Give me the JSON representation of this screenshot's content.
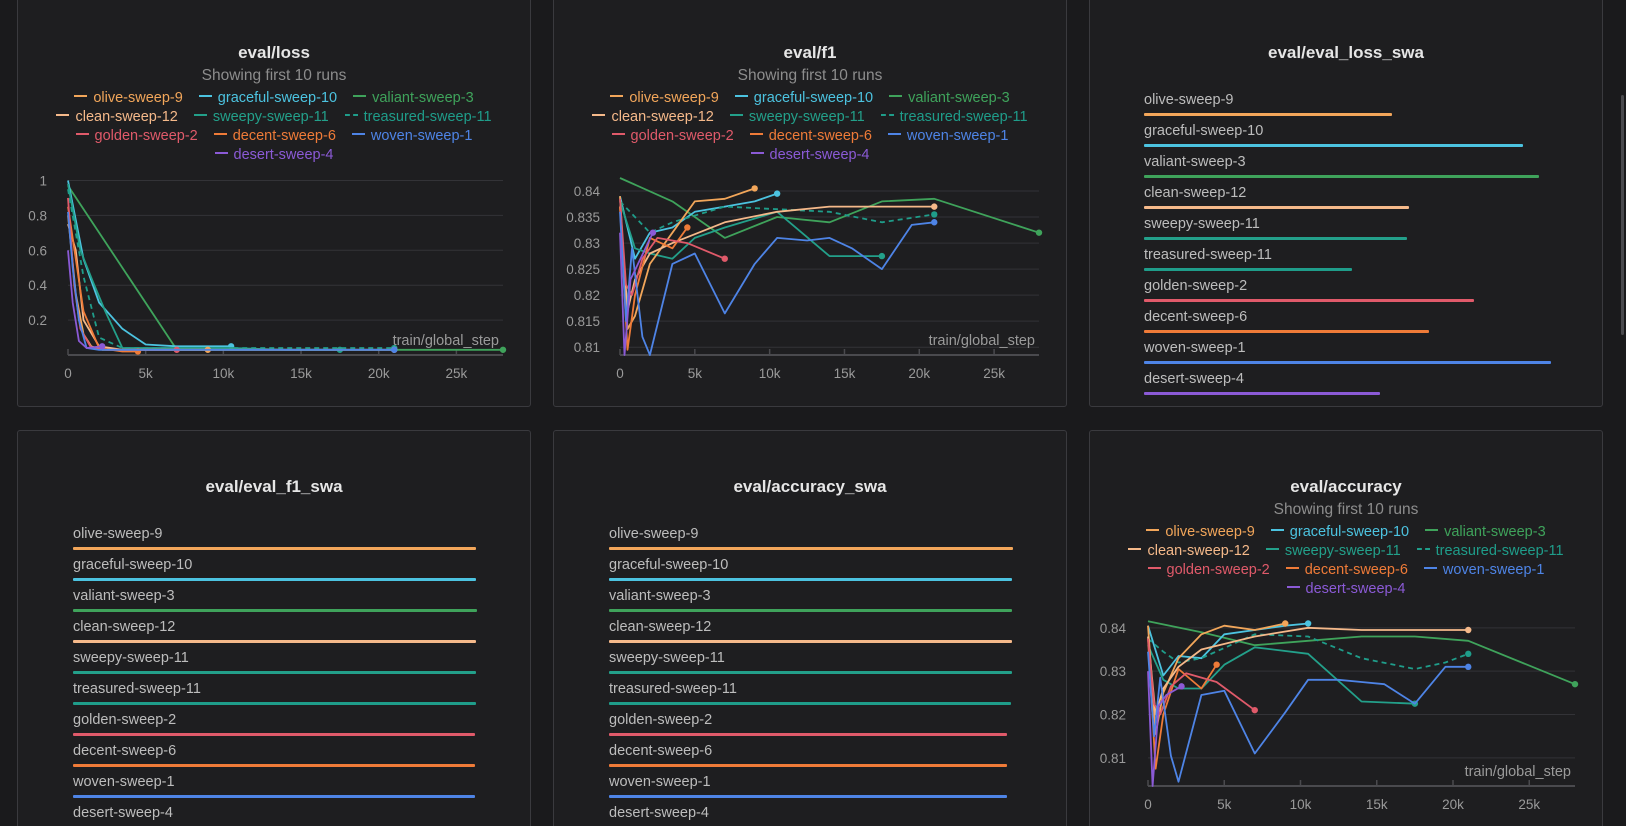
{
  "colors": {
    "olive-sweep-9": "#f2a65a",
    "graceful-sweep-10": "#4cc3e0",
    "valiant-sweep-3": "#3fa35b",
    "clean-sweep-12": "#f5b98a",
    "sweepy-sweep-11": "#23a08a",
    "treasured-sweep-11": "#1f9d8a",
    "golden-sweep-2": "#e05a6a",
    "decent-sweep-6": "#ef7b38",
    "woven-sweep-1": "#4e84e6",
    "desert-sweep-4": "#8b5ad6"
  },
  "legend_rows": [
    [
      {
        "label": "olive-sweep-9",
        "key": "olive-sweep-9"
      },
      {
        "label": "graceful-sweep-10",
        "key": "graceful-sweep-10"
      },
      {
        "label": "valiant-sweep-3",
        "key": "valiant-sweep-3"
      }
    ],
    [
      {
        "label": "clean-sweep-12",
        "key": "clean-sweep-12"
      },
      {
        "label": "sweepy-sweep-11",
        "key": "sweepy-sweep-11"
      },
      {
        "label": "treasured-sweep-11",
        "key": "treasured-sweep-11",
        "dashed": true
      }
    ],
    [
      {
        "label": "golden-sweep-2",
        "key": "golden-sweep-2"
      },
      {
        "label": "decent-sweep-6",
        "key": "decent-sweep-6"
      },
      {
        "label": "woven-sweep-1",
        "key": "woven-sweep-1"
      }
    ],
    [
      {
        "label": "desert-sweep-4",
        "key": "desert-sweep-4"
      }
    ]
  ],
  "panels": {
    "loss": {
      "title": "eval/loss",
      "subtitle": "Showing first 10 runs"
    },
    "f1": {
      "title": "eval/f1",
      "subtitle": "Showing first 10 runs"
    },
    "loss_swa": {
      "title": "eval/eval_loss_swa"
    },
    "f1_swa": {
      "title": "eval/eval_f1_swa"
    },
    "accuracy_swa": {
      "title": "eval/accuracy_swa"
    },
    "accuracy": {
      "title": "eval/accuracy",
      "subtitle": "Showing first 10 runs"
    }
  },
  "chart_data": [
    {
      "id": "loss",
      "type": "line",
      "title": "eval/loss",
      "xlabel": "train/global_step",
      "xlim": [
        0,
        28000
      ],
      "ylim": [
        0,
        1.02
      ],
      "xticks": [
        0,
        5000,
        10000,
        15000,
        20000,
        25000
      ],
      "xtick_labels": [
        "0",
        "5k",
        "10k",
        "15k",
        "20k",
        "25k"
      ],
      "yticks": [
        0.2,
        0.4,
        0.6,
        0.8,
        1
      ],
      "ytick_labels": [
        "0.2",
        "0.4",
        "0.6",
        "0.8",
        "1"
      ],
      "series": [
        {
          "name": "valiant-sweep-3",
          "x": [
            0,
            7000,
            14000,
            21000,
            28000
          ],
          "y": [
            0.97,
            0.03,
            0.03,
            0.03,
            0.03
          ]
        },
        {
          "name": "graceful-sweep-10",
          "x": [
            0,
            1000,
            2000,
            3500,
            5000,
            7000,
            10500
          ],
          "y": [
            1.0,
            0.55,
            0.3,
            0.15,
            0.06,
            0.05,
            0.05
          ]
        },
        {
          "name": "sweepy-sweep-11",
          "x": [
            0,
            800,
            1600,
            2400,
            3500,
            7000,
            10500,
            14000,
            17500
          ],
          "y": [
            0.98,
            0.6,
            0.42,
            0.25,
            0.04,
            0.04,
            0.04,
            0.03,
            0.03
          ]
        },
        {
          "name": "treasured-sweep-11",
          "x": [
            0,
            1000,
            2000,
            3500,
            7000,
            10500,
            14000,
            17500,
            21000
          ],
          "y": [
            0.95,
            0.45,
            0.1,
            0.04,
            0.04,
            0.04,
            0.04,
            0.04,
            0.04
          ]
        },
        {
          "name": "olive-sweep-9",
          "x": [
            0,
            500,
            1000,
            1500,
            2200,
            3500,
            7000,
            9000
          ],
          "y": [
            0.8,
            0.35,
            0.12,
            0.05,
            0.03,
            0.03,
            0.03,
            0.03
          ]
        },
        {
          "name": "clean-sweep-12",
          "x": [
            0,
            500,
            1000,
            2000,
            3500,
            7000,
            14000,
            21000
          ],
          "y": [
            0.75,
            0.6,
            0.2,
            0.05,
            0.03,
            0.03,
            0.03,
            0.03
          ]
        },
        {
          "name": "decent-sweep-6",
          "x": [
            0,
            500,
            1000,
            2000,
            3500,
            4500
          ],
          "y": [
            0.85,
            0.55,
            0.25,
            0.04,
            0.02,
            0.02
          ]
        },
        {
          "name": "golden-sweep-2",
          "x": [
            0,
            400,
            800,
            1500,
            2500,
            4500,
            7000
          ],
          "y": [
            0.9,
            0.4,
            0.15,
            0.04,
            0.03,
            0.03,
            0.03
          ]
        },
        {
          "name": "woven-sweep-1",
          "x": [
            0,
            300,
            700,
            1200,
            2000,
            7000,
            14000,
            21000
          ],
          "y": [
            0.82,
            0.5,
            0.2,
            0.04,
            0.03,
            0.03,
            0.03,
            0.03
          ]
        },
        {
          "name": "desert-sweep-4",
          "x": [
            0,
            300,
            700,
            1200,
            2200
          ],
          "y": [
            0.6,
            0.3,
            0.08,
            0.04,
            0.05
          ]
        }
      ]
    },
    {
      "id": "f1",
      "type": "line",
      "title": "eval/f1",
      "xlabel": "train/global_step",
      "xlim": [
        0,
        28000
      ],
      "ylim": [
        0.8085,
        0.8425
      ],
      "xticks": [
        0,
        5000,
        10000,
        15000,
        20000,
        25000
      ],
      "xtick_labels": [
        "0",
        "5k",
        "10k",
        "15k",
        "20k",
        "25k"
      ],
      "yticks": [
        0.81,
        0.815,
        0.82,
        0.825,
        0.83,
        0.835,
        0.84
      ],
      "ytick_labels": [
        "0.81",
        "0.815",
        "0.82",
        "0.825",
        "0.83",
        "0.835",
        "0.84"
      ],
      "series": [
        {
          "name": "valiant-sweep-3",
          "x": [
            0,
            3500,
            7000,
            10500,
            14000,
            17500,
            21000,
            28000
          ],
          "y": [
            0.8425,
            0.838,
            0.831,
            0.835,
            0.834,
            0.838,
            0.8385,
            0.832
          ]
        },
        {
          "name": "graceful-sweep-10",
          "x": [
            0,
            1000,
            2000,
            3500,
            5000,
            7000,
            9000,
            10500
          ],
          "y": [
            0.839,
            0.827,
            0.832,
            0.833,
            0.836,
            0.837,
            0.838,
            0.8395
          ]
        },
        {
          "name": "sweepy-sweep-11",
          "x": [
            0,
            1000,
            2000,
            3500,
            5000,
            7000,
            10500,
            14000,
            17500
          ],
          "y": [
            0.838,
            0.829,
            0.828,
            0.827,
            0.831,
            0.833,
            0.836,
            0.8275,
            0.8275
          ]
        },
        {
          "name": "treasured-sweep-11",
          "x": [
            0,
            1000,
            2000,
            3500,
            7000,
            10500,
            14000,
            17500,
            21000
          ],
          "y": [
            0.838,
            0.835,
            0.832,
            0.834,
            0.837,
            0.8365,
            0.836,
            0.834,
            0.8355
          ]
        },
        {
          "name": "olive-sweep-9",
          "x": [
            0,
            500,
            1000,
            2000,
            3500,
            5000,
            7000,
            9000
          ],
          "y": [
            0.839,
            0.8135,
            0.816,
            0.826,
            0.832,
            0.838,
            0.8385,
            0.8405
          ]
        },
        {
          "name": "clean-sweep-12",
          "x": [
            0,
            500,
            1000,
            2000,
            3500,
            7000,
            10500,
            14000,
            17500,
            21000
          ],
          "y": [
            0.837,
            0.817,
            0.823,
            0.828,
            0.83,
            0.834,
            0.836,
            0.837,
            0.837,
            0.837
          ]
        },
        {
          "name": "decent-sweep-6",
          "x": [
            0,
            500,
            1000,
            2000,
            3500,
            4500
          ],
          "y": [
            0.837,
            0.8095,
            0.82,
            0.831,
            0.829,
            0.833
          ]
        },
        {
          "name": "golden-sweep-2",
          "x": [
            0,
            400,
            800,
            1500,
            2500,
            4500,
            7000
          ],
          "y": [
            0.8385,
            0.822,
            0.82,
            0.827,
            0.831,
            0.83,
            0.827
          ]
        },
        {
          "name": "woven-sweep-1",
          "x": [
            0,
            400,
            800,
            1500,
            2000,
            3500,
            5000,
            7000,
            9000,
            10500,
            12500,
            14000,
            15500,
            17500,
            19500,
            21000
          ],
          "y": [
            0.836,
            0.815,
            0.829,
            0.812,
            0.8085,
            0.826,
            0.828,
            0.8165,
            0.826,
            0.831,
            0.8305,
            0.831,
            0.829,
            0.825,
            0.8335,
            0.834
          ]
        },
        {
          "name": "desert-sweep-4",
          "x": [
            0,
            300,
            700,
            1200,
            2200
          ],
          "y": [
            0.832,
            0.8085,
            0.823,
            0.826,
            0.832
          ]
        }
      ]
    },
    {
      "id": "loss_swa",
      "type": "bar",
      "title": "eval/eval_loss_swa",
      "categories": [
        "olive-sweep-9",
        "graceful-sweep-10",
        "valiant-sweep-3",
        "clean-sweep-12",
        "sweepy-sweep-11",
        "treasured-sweep-11",
        "golden-sweep-2",
        "decent-sweep-6",
        "woven-sweep-1",
        "desert-sweep-4"
      ],
      "values": [
        0.61,
        0.93,
        0.97,
        0.65,
        0.645,
        0.51,
        0.81,
        0.7,
        1.0,
        0.58
      ]
    },
    {
      "id": "f1_swa",
      "type": "bar",
      "title": "eval/eval_f1_swa",
      "categories": [
        "olive-sweep-9",
        "graceful-sweep-10",
        "valiant-sweep-3",
        "clean-sweep-12",
        "sweepy-sweep-11",
        "treasured-sweep-11",
        "golden-sweep-2",
        "decent-sweep-6",
        "woven-sweep-1",
        "desert-sweep-4"
      ],
      "values": [
        0.9975,
        0.9965,
        1.0,
        0.997,
        0.9965,
        0.9965,
        0.9955,
        0.994,
        0.994,
        0.993
      ]
    },
    {
      "id": "accuracy_swa",
      "type": "bar",
      "title": "eval/accuracy_swa",
      "categories": [
        "olive-sweep-9",
        "graceful-sweep-10",
        "valiant-sweep-3",
        "clean-sweep-12",
        "sweepy-sweep-11",
        "treasured-sweep-11",
        "golden-sweep-2",
        "decent-sweep-6",
        "woven-sweep-1",
        "desert-sweep-4"
      ],
      "values": [
        1.0,
        0.998,
        0.998,
        0.998,
        0.998,
        0.995,
        0.985,
        0.985,
        0.985,
        0.983
      ]
    },
    {
      "id": "accuracy",
      "type": "line",
      "title": "eval/accuracy",
      "xlabel": "train/global_step",
      "xlim": [
        0,
        28000
      ],
      "ylim": [
        0.8035,
        0.8425
      ],
      "xticks": [
        0,
        5000,
        10000,
        15000,
        20000,
        25000
      ],
      "xtick_labels": [
        "0",
        "5k",
        "10k",
        "15k",
        "20k",
        "25k"
      ],
      "yticks": [
        0.81,
        0.82,
        0.83,
        0.84
      ],
      "ytick_labels": [
        "0.81",
        "0.82",
        "0.83",
        "0.84"
      ],
      "series": [
        {
          "name": "valiant-sweep-3",
          "x": [
            0,
            3500,
            7000,
            10500,
            14000,
            17500,
            21000,
            28000
          ],
          "y": [
            0.8415,
            0.839,
            0.836,
            0.837,
            0.838,
            0.838,
            0.837,
            0.827
          ]
        },
        {
          "name": "graceful-sweep-10",
          "x": [
            0,
            1000,
            2000,
            3500,
            5000,
            7000,
            9000,
            10500
          ],
          "y": [
            0.8405,
            0.829,
            0.8335,
            0.833,
            0.8385,
            0.8395,
            0.8405,
            0.841
          ]
        },
        {
          "name": "sweepy-sweep-11",
          "x": [
            0,
            1000,
            2000,
            3500,
            5000,
            7000,
            10500,
            14000,
            17500
          ],
          "y": [
            0.836,
            0.828,
            0.826,
            0.826,
            0.8315,
            0.8355,
            0.834,
            0.823,
            0.8225
          ]
        },
        {
          "name": "treasured-sweep-11",
          "x": [
            0,
            1000,
            2000,
            3500,
            7000,
            10500,
            14000,
            17500,
            19500,
            21000
          ],
          "y": [
            0.8375,
            0.8345,
            0.832,
            0.833,
            0.8385,
            0.838,
            0.833,
            0.8305,
            0.832,
            0.834
          ]
        },
        {
          "name": "olive-sweep-9",
          "x": [
            0,
            500,
            1000,
            2000,
            3500,
            5000,
            7000,
            9000
          ],
          "y": [
            0.8405,
            0.8155,
            0.825,
            0.833,
            0.8385,
            0.8405,
            0.8395,
            0.841
          ]
        },
        {
          "name": "clean-sweep-12",
          "x": [
            0,
            500,
            1000,
            2000,
            3500,
            7000,
            10500,
            14000,
            17500,
            21000
          ],
          "y": [
            0.838,
            0.82,
            0.826,
            0.831,
            0.835,
            0.838,
            0.84,
            0.8395,
            0.8395,
            0.8395
          ]
        },
        {
          "name": "decent-sweep-6",
          "x": [
            0,
            500,
            1000,
            2000,
            3500,
            4500
          ],
          "y": [
            0.8375,
            0.8075,
            0.82,
            0.8305,
            0.826,
            0.8315
          ]
        },
        {
          "name": "golden-sweep-2",
          "x": [
            0,
            400,
            800,
            1500,
            2500,
            4500,
            7000
          ],
          "y": [
            0.8375,
            0.8225,
            0.82,
            0.8265,
            0.8295,
            0.8275,
            0.821
          ]
        },
        {
          "name": "woven-sweep-1",
          "x": [
            0,
            400,
            800,
            1500,
            2000,
            3500,
            5000,
            7000,
            9000,
            10500,
            12500,
            14000,
            15500,
            17500,
            19500,
            21000
          ],
          "y": [
            0.8345,
            0.815,
            0.8285,
            0.8105,
            0.8045,
            0.8245,
            0.8255,
            0.811,
            0.8205,
            0.828,
            0.828,
            0.8275,
            0.827,
            0.8225,
            0.831,
            0.831
          ]
        },
        {
          "name": "desert-sweep-4",
          "x": [
            0,
            300,
            700,
            1200,
            2200
          ],
          "y": [
            0.83,
            0.8035,
            0.822,
            0.8245,
            0.8265
          ]
        }
      ]
    }
  ]
}
